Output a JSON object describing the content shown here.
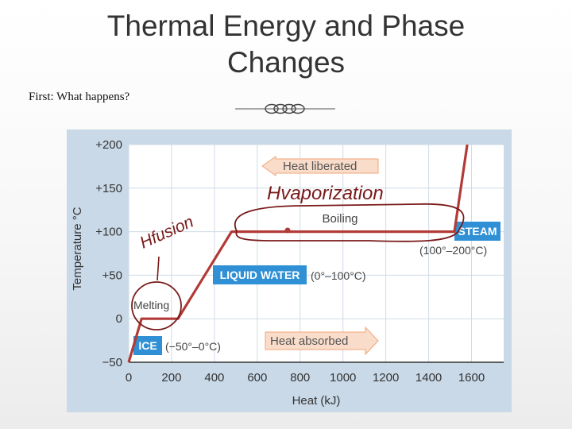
{
  "slide": {
    "title_line1": "Thermal Energy and Phase",
    "title_line2": "Changes",
    "subtitle": "First: What happens?"
  },
  "colors": {
    "panel_bg": "#c9d9e8",
    "plot_bg": "#ffffff",
    "grid": "#cfdbe6",
    "curve": "#b23a37",
    "label_blue": "#2f90d6",
    "arrow_orange": "#f2a679",
    "arrow_fill": "#f9dcc9",
    "handwriting": "#7a1a1a"
  },
  "chart_data": {
    "type": "line",
    "xlabel": "Heat (kJ)",
    "ylabel": "Temperature °C",
    "xlim": [
      0,
      1750
    ],
    "ylim": [
      -50,
      200
    ],
    "x_ticks": [
      0,
      200,
      400,
      600,
      800,
      1000,
      1200,
      1400,
      1600
    ],
    "y_ticks": [
      {
        "value": 200,
        "label": "+200"
      },
      {
        "value": 150,
        "label": "+150"
      },
      {
        "value": 100,
        "label": "+100"
      },
      {
        "value": 50,
        "label": "+50"
      },
      {
        "value": 0,
        "label": "0"
      },
      {
        "value": -50,
        "label": "−50"
      }
    ],
    "grid": true,
    "x": [
      0,
      60,
      230,
      480,
      1520,
      1580
    ],
    "y": [
      -50,
      0,
      0,
      100,
      100,
      200
    ],
    "annotations": {
      "heat_liberated": "Heat liberated",
      "heat_absorbed": "Heat absorbed",
      "boiling": "Boiling",
      "melting": "Melting",
      "steam": "STEAM",
      "steam_range": "(100°–200°C)",
      "liquid": "LIQUID WATER",
      "liquid_range": "(0°–100°C)",
      "ice": "ICE",
      "ice_range": "(−50°–0°C)",
      "h_vaporization": "Hvaporization",
      "h_fusion": "Hfusion"
    }
  }
}
